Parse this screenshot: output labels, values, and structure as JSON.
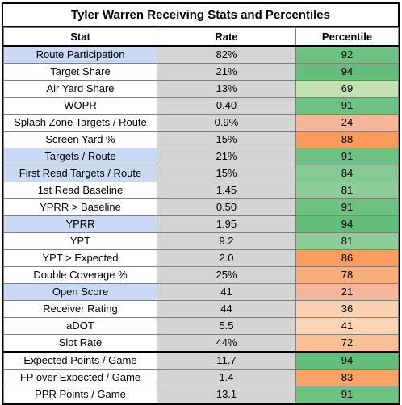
{
  "title": "Tyler Warren Receiving Stats and Percentiles",
  "headers": {
    "stat": "Stat",
    "rate": "Rate",
    "percentile": "Percentile"
  },
  "colors": {
    "highlight_stat": "#cad9f5",
    "rate_cell": "#d4d4d4",
    "dark_green": "#63be7b",
    "mid_green": "#7fc88c",
    "light_green": "#c3e2b2",
    "orange": "#fba366",
    "salmon": "#f5b79c",
    "peach": "#fbd2b1"
  },
  "rows": [
    {
      "stat": "Route Participation",
      "rate": "82%",
      "percentile": "92",
      "hl": true,
      "pct_color": "#6dc181"
    },
    {
      "stat": "Target Share",
      "rate": "21%",
      "percentile": "94",
      "hl": false,
      "pct_color": "#63be7b"
    },
    {
      "stat": "Air Yard Share",
      "rate": "13%",
      "percentile": "69",
      "hl": false,
      "pct_color": "#c3e2b2"
    },
    {
      "stat": "WOPR",
      "rate": "0.40",
      "percentile": "91",
      "hl": false,
      "pct_color": "#6dc181"
    },
    {
      "stat": "Splash Zone Targets / Route",
      "rate": "0.9%",
      "percentile": "24",
      "hl": false,
      "pct_color": "#f5b79c"
    },
    {
      "stat": "Screen Yard %",
      "rate": "15%",
      "percentile": "88",
      "hl": false,
      "pct_color": "#fb9a59"
    },
    {
      "stat": "Targets / Route",
      "rate": "21%",
      "percentile": "91",
      "hl": true,
      "pct_color": "#6dc181"
    },
    {
      "stat": "First Read Targets / Route",
      "rate": "15%",
      "percentile": "84",
      "hl": true,
      "pct_color": "#85ca92"
    },
    {
      "stat": "1st Read Baseline",
      "rate": "1.45",
      "percentile": "81",
      "hl": false,
      "pct_color": "#8ecd99"
    },
    {
      "stat": "YPRR > Baseline",
      "rate": "0.50",
      "percentile": "91",
      "hl": false,
      "pct_color": "#6dc181"
    },
    {
      "stat": "YPRR",
      "rate": "1.95",
      "percentile": "94",
      "hl": true,
      "pct_color": "#63be7b"
    },
    {
      "stat": "YPT",
      "rate": "9.2",
      "percentile": "81",
      "hl": false,
      "pct_color": "#8ecd99"
    },
    {
      "stat": "YPT > Expected",
      "rate": "2.0",
      "percentile": "86",
      "hl": false,
      "pct_color": "#fb9d5e"
    },
    {
      "stat": "Double Coverage %",
      "rate": "25%",
      "percentile": "78",
      "hl": false,
      "pct_color": "#f9ad7a"
    },
    {
      "stat": "Open Score",
      "rate": "41",
      "percentile": "21",
      "hl": true,
      "pct_color": "#f5b79c"
    },
    {
      "stat": "Receiver Rating",
      "rate": "44",
      "percentile": "36",
      "hl": false,
      "pct_color": "#fbd2b1"
    },
    {
      "stat": "aDOT",
      "rate": "5.5",
      "percentile": "41",
      "hl": false,
      "pct_color": "#fbd4b3"
    },
    {
      "stat": "Slot Rate",
      "rate": "44%",
      "percentile": "72",
      "hl": false,
      "pct_color": "#f9c095"
    },
    {
      "stat": "Expected Points / Game",
      "rate": "11.7",
      "percentile": "94",
      "hl": false,
      "pct_color": "#63be7b",
      "section_start": true
    },
    {
      "stat": "FP over Expected / Game",
      "rate": "1.4",
      "percentile": "83",
      "hl": false,
      "pct_color": "#fba366"
    },
    {
      "stat": "PPR Points / Game",
      "rate": "13.1",
      "percentile": "91",
      "hl": false,
      "pct_color": "#6dc181"
    }
  ]
}
